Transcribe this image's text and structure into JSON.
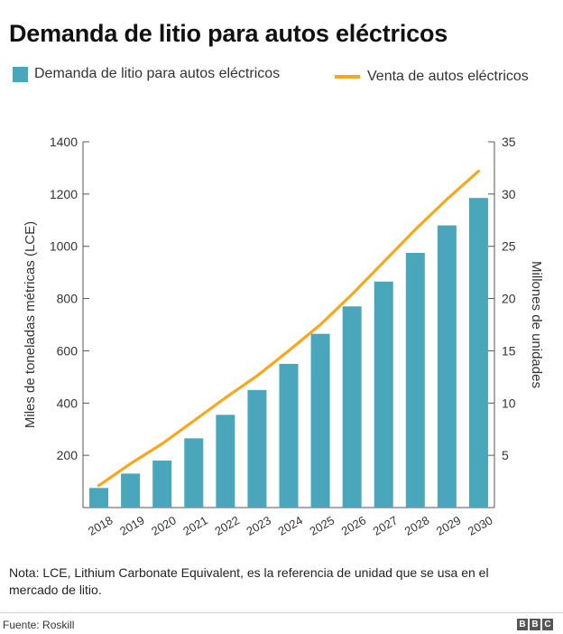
{
  "title": "Demanda de litio para autos eléctricos",
  "legend": {
    "bar_label": "Demanda de litio para autos eléctricos",
    "line_label": "Venta de autos eléctricos"
  },
  "colors": {
    "bar": "#4aa6bb",
    "line": "#f5a81c",
    "axis": "#555555",
    "text": "#333333"
  },
  "chart_data": {
    "type": "bar",
    "categories": [
      "2018",
      "2019",
      "2020",
      "2021",
      "2022",
      "2023",
      "2024",
      "2025",
      "2026",
      "2027",
      "2028",
      "2029",
      "2030"
    ],
    "series": [
      {
        "name": "Demanda de litio para autos eléctricos",
        "axis": "left",
        "type": "bar",
        "values": [
          75,
          130,
          180,
          265,
          355,
          450,
          550,
          665,
          770,
          865,
          975,
          1080,
          1185
        ]
      },
      {
        "name": "Venta de autos eléctricos",
        "axis": "right",
        "type": "line",
        "values": [
          2.1,
          4.2,
          6.1,
          8.3,
          10.5,
          12.6,
          15.0,
          17.5,
          20.4,
          23.5,
          26.6,
          29.5,
          32.2
        ]
      }
    ],
    "ylabel": "Miles de toneladas métricas (LCE)",
    "ylim": [
      0,
      1400
    ],
    "yticks": [
      200,
      400,
      600,
      800,
      1000,
      1200,
      1400
    ],
    "y2label": "Millones de unidades",
    "y2lim": [
      0,
      35
    ],
    "y2ticks": [
      5,
      10,
      15,
      20,
      25,
      30,
      35
    ],
    "grid": false,
    "legend_position": "top"
  },
  "note": "Nota: LCE, Lithium Carbonate Equivalent, es la referencia de unidad que se usa en el mercado de litio.",
  "source": "Fuente: Roskill",
  "logo": [
    "B",
    "B",
    "C"
  ]
}
